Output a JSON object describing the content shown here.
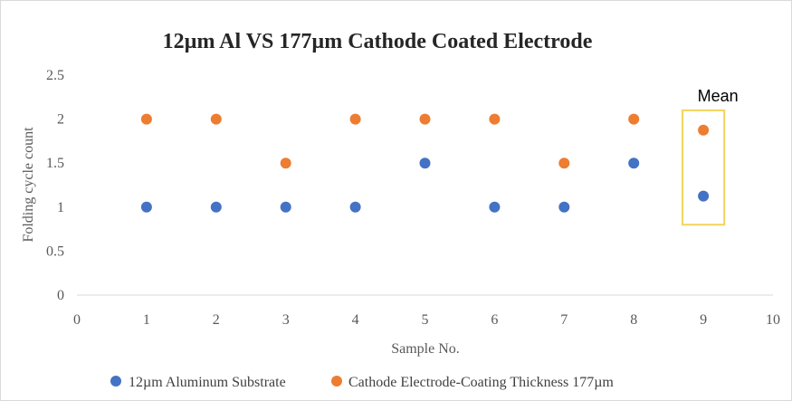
{
  "chart_data": {
    "type": "scatter",
    "title": "12µm Al  VS 177µm Cathode Coated Electrode",
    "xlabel": "Sample No.",
    "ylabel": "Folding cycle count",
    "xlim": [
      0,
      10
    ],
    "ylim": [
      0,
      2.5
    ],
    "x_ticks": [
      "0",
      "1",
      "2",
      "3",
      "4",
      "5",
      "6",
      "7",
      "8",
      "9",
      "10"
    ],
    "y_ticks": [
      "0",
      "0.5",
      "1",
      "1.5",
      "2",
      "2.5"
    ],
    "grid": false,
    "legend_position": "bottom",
    "series": [
      {
        "name": "12µm Aluminum Substrate",
        "color": "#4472C4",
        "points": [
          {
            "x": 1,
            "y": 1
          },
          {
            "x": 2,
            "y": 1
          },
          {
            "x": 3,
            "y": 1
          },
          {
            "x": 4,
            "y": 1
          },
          {
            "x": 5,
            "y": 1.5
          },
          {
            "x": 6,
            "y": 1
          },
          {
            "x": 7,
            "y": 1
          },
          {
            "x": 8,
            "y": 1.5
          },
          {
            "x": 9,
            "y": 1.125
          }
        ]
      },
      {
        "name": "Cathode Electrode-Coating Thickness 177µm",
        "color": "#ED7D31",
        "points": [
          {
            "x": 1,
            "y": 2
          },
          {
            "x": 2,
            "y": 2
          },
          {
            "x": 3,
            "y": 1.5
          },
          {
            "x": 4,
            "y": 2
          },
          {
            "x": 5,
            "y": 2
          },
          {
            "x": 6,
            "y": 2
          },
          {
            "x": 7,
            "y": 1.5
          },
          {
            "x": 8,
            "y": 2
          },
          {
            "x": 9,
            "y": 1.875
          }
        ]
      }
    ],
    "annotation": {
      "text": "Mean",
      "x_range": [
        8.7,
        9.3
      ],
      "y_range": [
        0.8,
        2.1
      ],
      "color": "#F2D45C"
    }
  }
}
